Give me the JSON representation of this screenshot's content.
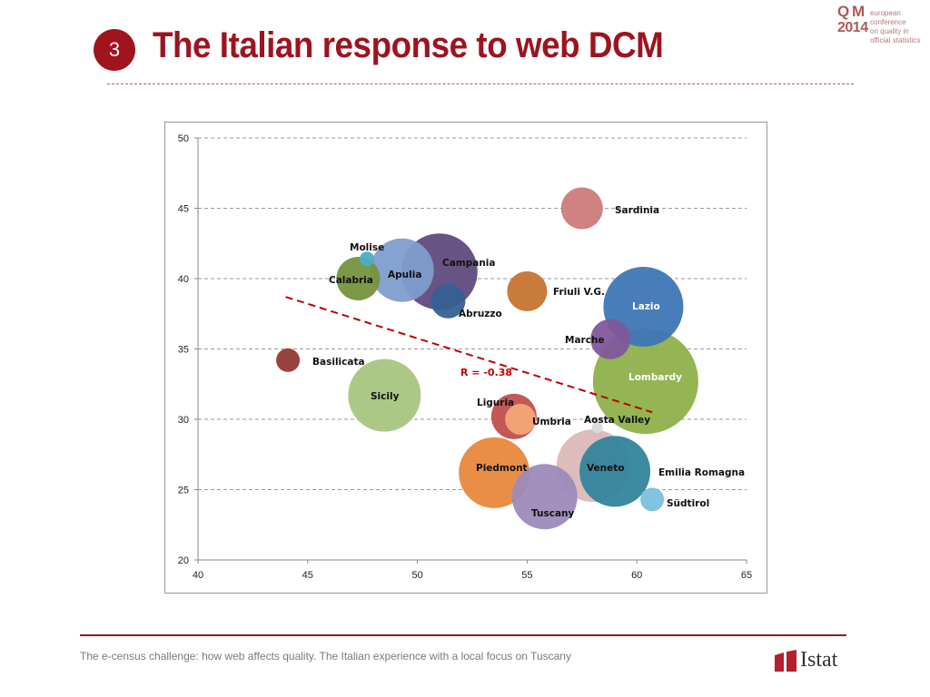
{
  "slide": {
    "number": "3",
    "title": "The Italian response to web DCM",
    "footer": "The e-census challenge: how web affects quality. The Italian experience with a local focus on Tuscany"
  },
  "logo_qm": {
    "qm": "Q M",
    "year": "2014",
    "line1": "european conference",
    "line2": "on quality in",
    "line3": "official statistics"
  },
  "logo_istat": {
    "word": "Istat"
  },
  "chart_data": {
    "type": "bubble",
    "xlim": [
      40,
      65
    ],
    "ylim": [
      20,
      50
    ],
    "x_ticks": [
      40,
      45,
      50,
      55,
      60,
      65
    ],
    "y_ticks": [
      20,
      25,
      30,
      35,
      40,
      45,
      50
    ],
    "grid": "horizontal dashed",
    "annotation": "R = -0.38",
    "trendline": {
      "x": [
        44,
        60.7
      ],
      "y": [
        38.7,
        30.5
      ],
      "color": "#c00000"
    },
    "points": [
      {
        "name": "Sardinia",
        "x": 57.5,
        "y": 45.0,
        "size": 23,
        "color": "#cd7a7a"
      },
      {
        "name": "Molise",
        "x": 47.7,
        "y": 41.4,
        "size": 8,
        "color": "#4aacc6"
      },
      {
        "name": "Calabria",
        "x": 47.3,
        "y": 40.0,
        "size": 24,
        "color": "#76923c"
      },
      {
        "name": "Abruzzo",
        "x": 51.4,
        "y": 38.4,
        "size": 19,
        "color": "#366092"
      },
      {
        "name": "Campania",
        "x": 51.0,
        "y": 40.5,
        "size": 42,
        "color": "#5f4b7e"
      },
      {
        "name": "Apulia",
        "x": 49.3,
        "y": 40.6,
        "size": 35,
        "color": "#7e9dcd"
      },
      {
        "name": "Friuli V.G.",
        "x": 55.0,
        "y": 39.1,
        "size": 22,
        "color": "#c5742f"
      },
      {
        "name": "Lazio",
        "x": 60.3,
        "y": 38.0,
        "size": 44,
        "color": "#3e76b5"
      },
      {
        "name": "Marche",
        "x": 58.8,
        "y": 35.7,
        "size": 22,
        "color": "#7f579b"
      },
      {
        "name": "Lombardy",
        "x": 60.4,
        "y": 32.7,
        "size": 58,
        "color": "#8fb04a"
      },
      {
        "name": "Basilicata",
        "x": 44.1,
        "y": 34.2,
        "size": 13,
        "color": "#953836"
      },
      {
        "name": "Sicily",
        "x": 48.5,
        "y": 31.7,
        "size": 40,
        "color": "#a8c580"
      },
      {
        "name": "Liguria",
        "x": 54.4,
        "y": 30.2,
        "size": 25,
        "color": "#c0504d"
      },
      {
        "name": "Umbria",
        "x": 54.7,
        "y": 30.0,
        "size": 17,
        "color": "#f6a678"
      },
      {
        "name": "Aosta Valley",
        "x": 58.2,
        "y": 29.4,
        "size": 6,
        "color": "#d9d9d9"
      },
      {
        "name": "Emilia Romagna",
        "x": 59.0,
        "y": 26.3,
        "size": 39,
        "color": "#31859c"
      },
      {
        "name": "Piedmont",
        "x": 53.5,
        "y": 26.2,
        "size": 39,
        "color": "#e8883d"
      },
      {
        "name": "Veneto",
        "x": 58.0,
        "y": 26.7,
        "size": 40,
        "color": "#ddb8b8"
      },
      {
        "name": "Tuscany",
        "x": 55.8,
        "y": 24.5,
        "size": 36,
        "color": "#9d8ab9"
      },
      {
        "name": "Südtirol",
        "x": 60.7,
        "y": 24.3,
        "size": 13,
        "color": "#7cc0dc"
      }
    ]
  }
}
